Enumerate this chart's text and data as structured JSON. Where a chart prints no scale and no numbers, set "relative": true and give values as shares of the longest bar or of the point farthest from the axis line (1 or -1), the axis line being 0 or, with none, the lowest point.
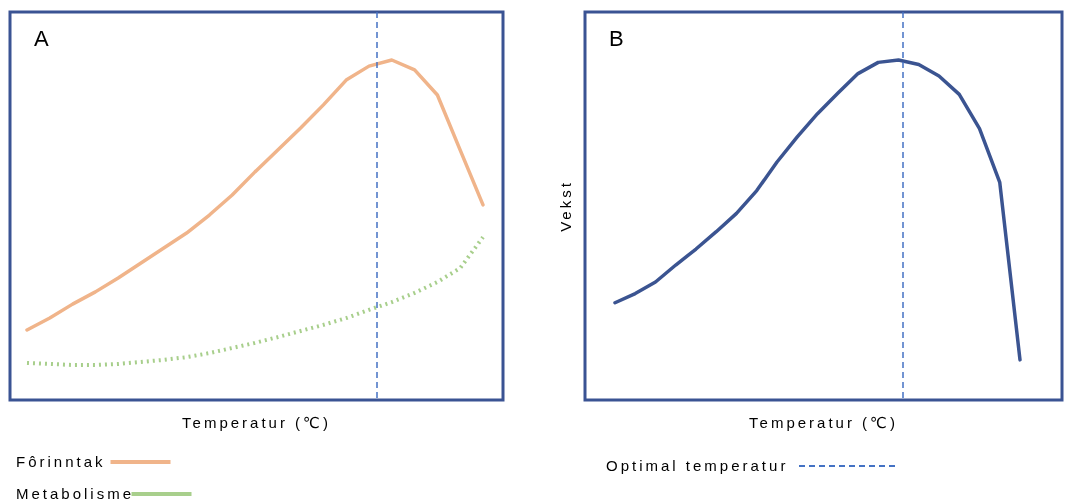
{
  "chart_data": [
    {
      "type": "line",
      "title": "A",
      "xlabel": "Temperatur (℃)",
      "relative": true,
      "categories": [
        null,
        null,
        null,
        null,
        null,
        null,
        null,
        null,
        null,
        null,
        null,
        null,
        null,
        null,
        null,
        null,
        null,
        null,
        null,
        null,
        null
      ],
      "legend": "bottom",
      "series": [
        {
          "name": "Fôrinntak",
          "color": "#f0b48a",
          "line_style": "solid",
          "values": [
            0.206,
            0.241,
            0.282,
            0.318,
            0.359,
            0.403,
            0.447,
            0.491,
            0.544,
            0.603,
            0.671,
            0.735,
            0.8,
            0.868,
            0.941,
            0.982,
            1,
            0.971,
            0.897,
            0.735,
            0.574
          ]
        },
        {
          "name": "Metabolisme",
          "color": "#a8cf8c",
          "line_style": "dotted",
          "values": [
            0.109,
            0.106,
            0.103,
            0.103,
            0.106,
            0.112,
            0.118,
            0.126,
            0.138,
            0.153,
            0.168,
            0.185,
            0.203,
            0.221,
            0.241,
            0.265,
            0.288,
            0.315,
            0.347,
            0.388,
            0.479
          ]
        }
      ]
    },
    {
      "type": "line",
      "title": "B",
      "xlabel": "Temperatur (℃)",
      "ylabel": "Vekst",
      "relative": true,
      "categories": [
        null,
        null,
        null,
        null,
        null,
        null,
        null,
        null,
        null,
        null,
        null,
        null,
        null,
        null,
        null,
        null,
        null,
        null,
        null,
        null,
        null
      ],
      "series": [
        {
          "color": "#3b5491",
          "line_style": "solid",
          "values": [
            0.286,
            0.313,
            0.347,
            0.397,
            0.444,
            0.495,
            0.549,
            0.616,
            0.7,
            0.774,
            0.842,
            0.902,
            0.96,
            0.993,
            1,
            0.987,
            0.953,
            0.899,
            0.798,
            0.64,
            0.118
          ]
        }
      ],
      "annotations": [
        "Optimal temperatur"
      ]
    }
  ]
}
